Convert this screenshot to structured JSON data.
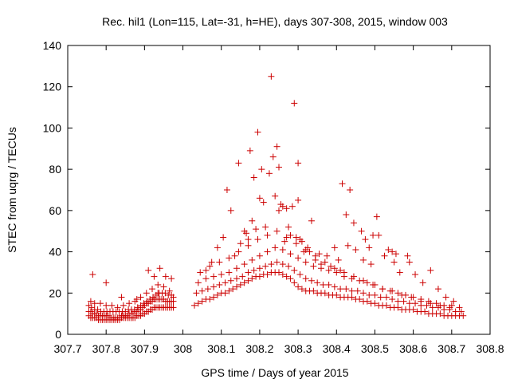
{
  "chart_data": {
    "type": "scatter",
    "title": "Rec. hil1 (Lon=115, Lat=-31, h=HE), days 307-308, 2015, window 003",
    "xlabel": "GPS time / Days of year 2015",
    "ylabel": "STEC from uqrg / TECUs",
    "xlim": [
      307.7,
      308.8
    ],
    "ylim": [
      0,
      140
    ],
    "xticks": [
      307.7,
      307.8,
      307.9,
      308.0,
      308.1,
      308.2,
      308.3,
      308.4,
      308.5,
      308.6,
      308.7,
      308.8
    ],
    "xtick_labels": [
      "307.7",
      "307.8",
      "307.9",
      "308",
      "308.1",
      "308.2",
      "308.3",
      "308.4",
      "308.5",
      "308.6",
      "308.7",
      "308.8"
    ],
    "yticks": [
      0,
      20,
      40,
      60,
      80,
      100,
      120,
      140
    ],
    "ytick_labels": [
      "0",
      "20",
      "40",
      "60",
      "80",
      "100",
      "120",
      "140"
    ],
    "grid": false,
    "marker": "+",
    "color": "#cc0000",
    "series": [
      {
        "name": "STEC",
        "x": [
          307.755,
          307.76,
          307.765,
          307.77,
          307.775,
          307.78,
          307.785,
          307.79,
          307.795,
          307.8,
          307.805,
          307.81,
          307.815,
          307.82,
          307.825,
          307.83,
          307.835,
          307.84,
          307.845,
          307.85,
          307.855,
          307.86,
          307.865,
          307.87,
          307.875,
          307.88,
          307.885,
          307.89,
          307.895,
          307.9,
          307.905,
          307.91,
          307.915,
          307.92,
          307.925,
          307.93,
          307.935,
          307.94,
          307.945,
          307.95,
          307.955,
          307.96,
          307.965,
          307.97,
          307.975,
          307.755,
          307.76,
          307.765,
          307.77,
          307.775,
          307.78,
          307.785,
          307.79,
          307.795,
          307.8,
          307.805,
          307.81,
          307.815,
          307.82,
          307.825,
          307.83,
          307.835,
          307.84,
          307.845,
          307.85,
          307.855,
          307.86,
          307.865,
          307.87,
          307.875,
          307.88,
          307.885,
          307.89,
          307.895,
          307.9,
          307.905,
          307.91,
          307.915,
          307.92,
          307.925,
          307.93,
          307.935,
          307.94,
          307.945,
          307.95,
          307.955,
          307.96,
          307.965,
          307.97,
          307.975,
          307.755,
          307.762,
          307.77,
          307.778,
          307.786,
          307.794,
          307.802,
          307.81,
          307.818,
          307.826,
          307.834,
          307.842,
          307.85,
          307.858,
          307.866,
          307.874,
          307.882,
          307.89,
          307.898,
          307.906,
          307.914,
          307.922,
          307.93,
          307.938,
          307.946,
          307.954,
          307.962,
          307.97,
          307.975,
          307.76,
          307.77,
          307.785,
          307.8,
          307.815,
          307.83,
          307.845,
          307.86,
          307.875,
          307.89,
          307.905,
          307.92,
          307.935,
          307.95,
          307.965,
          307.765,
          307.8,
          307.84,
          307.88,
          307.91,
          307.925,
          307.94,
          307.955,
          307.97,
          307.935,
          308.03,
          308.04,
          308.05,
          308.06,
          308.07,
          308.08,
          308.09,
          308.1,
          308.11,
          308.12,
          308.13,
          308.14,
          308.15,
          308.16,
          308.17,
          308.18,
          308.19,
          308.2,
          308.21,
          308.22,
          308.23,
          308.24,
          308.25,
          308.26,
          308.27,
          308.28,
          308.29,
          308.3,
          308.31,
          308.32,
          308.33,
          308.34,
          308.35,
          308.36,
          308.37,
          308.38,
          308.39,
          308.4,
          308.41,
          308.42,
          308.43,
          308.44,
          308.45,
          308.46,
          308.47,
          308.48,
          308.49,
          308.5,
          308.51,
          308.52,
          308.53,
          308.54,
          308.55,
          308.56,
          308.57,
          308.58,
          308.59,
          308.6,
          308.61,
          308.62,
          308.63,
          308.64,
          308.65,
          308.66,
          308.67,
          308.68,
          308.69,
          308.7,
          308.71,
          308.72,
          308.73,
          308.035,
          308.05,
          308.065,
          308.08,
          308.095,
          308.11,
          308.125,
          308.14,
          308.155,
          308.17,
          308.185,
          308.2,
          308.215,
          308.23,
          308.245,
          308.26,
          308.275,
          308.29,
          308.305,
          308.32,
          308.335,
          308.35,
          308.365,
          308.38,
          308.395,
          308.41,
          308.425,
          308.44,
          308.455,
          308.47,
          308.485,
          308.5,
          308.515,
          308.53,
          308.545,
          308.56,
          308.575,
          308.59,
          308.605,
          308.62,
          308.635,
          308.65,
          308.665,
          308.68,
          308.695,
          308.71,
          308.725,
          308.04,
          308.06,
          308.08,
          308.1,
          308.12,
          308.14,
          308.16,
          308.18,
          308.2,
          308.22,
          308.24,
          308.26,
          308.28,
          308.3,
          308.32,
          308.34,
          308.36,
          308.38,
          308.4,
          308.42,
          308.44,
          308.46,
          308.48,
          308.5,
          308.52,
          308.54,
          308.56,
          308.58,
          308.6,
          308.62,
          308.64,
          308.66,
          308.68,
          308.7,
          308.72,
          308.045,
          308.07,
          308.095,
          308.12,
          308.145,
          308.17,
          308.195,
          308.22,
          308.245,
          308.27,
          308.295,
          308.32,
          308.345,
          308.37,
          308.395,
          308.42,
          308.445,
          308.47,
          308.495,
          308.52,
          308.545,
          308.57,
          308.595,
          308.62,
          308.645,
          308.67,
          308.695,
          308.115,
          308.125,
          308.145,
          308.165,
          308.175,
          308.185,
          308.195,
          308.2,
          308.205,
          308.21,
          308.215,
          308.225,
          308.23,
          308.235,
          308.24,
          308.245,
          308.25,
          308.255,
          308.265,
          308.27,
          308.275,
          308.28,
          308.285,
          308.29,
          308.295,
          308.3,
          308.305,
          308.31,
          308.315,
          308.325,
          308.335,
          308.355,
          308.375,
          308.395,
          308.405,
          308.415,
          308.425,
          308.435,
          308.445,
          308.465,
          308.475,
          308.485,
          308.495,
          308.505,
          308.535,
          308.545,
          308.555,
          308.585,
          308.605,
          308.06,
          308.075,
          308.09,
          308.105,
          308.135,
          308.15,
          308.16,
          308.17,
          308.18,
          308.19,
          308.25,
          308.26,
          308.3,
          308.33,
          308.345,
          308.36,
          308.385,
          308.41,
          308.43,
          308.45,
          308.47,
          308.49,
          308.51,
          308.525,
          308.55,
          308.565,
          308.59,
          308.625,
          308.645,
          308.665,
          308.685,
          308.705
        ],
        "y": [
          9,
          8,
          8,
          8,
          8,
          7,
          7,
          7,
          7,
          7,
          7,
          7,
          7,
          7,
          7,
          7,
          7,
          8,
          8,
          8,
          8,
          8,
          8,
          8,
          8,
          9,
          9,
          9,
          10,
          10,
          11,
          11,
          12,
          12,
          13,
          13,
          13,
          13,
          13,
          13,
          13,
          13,
          13,
          13,
          13,
          11,
          11,
          10,
          10,
          10,
          9,
          9,
          9,
          9,
          9,
          9,
          8,
          8,
          8,
          8,
          8,
          8,
          9,
          9,
          9,
          9,
          10,
          10,
          10,
          11,
          11,
          12,
          12,
          13,
          14,
          15,
          15,
          16,
          16,
          17,
          17,
          17,
          17,
          17,
          17,
          16,
          16,
          16,
          16,
          16,
          14,
          13,
          12,
          12,
          11,
          11,
          11,
          11,
          11,
          11,
          11,
          11,
          11,
          12,
          12,
          12,
          13,
          14,
          15,
          16,
          17,
          18,
          19,
          20,
          20,
          20,
          19,
          19,
          18,
          16,
          15,
          15,
          14,
          14,
          13,
          14,
          15,
          16,
          18,
          20,
          22,
          24,
          23,
          21,
          29,
          25,
          18,
          17,
          31,
          28,
          32,
          28,
          27,
          20,
          14,
          15,
          16,
          17,
          17,
          18,
          19,
          20,
          20,
          21,
          22,
          23,
          24,
          25,
          26,
          27,
          28,
          28,
          29,
          29,
          30,
          30,
          30,
          29,
          28,
          27,
          25,
          23,
          22,
          21,
          21,
          21,
          20,
          20,
          20,
          19,
          19,
          19,
          18,
          18,
          18,
          18,
          17,
          17,
          16,
          16,
          15,
          15,
          14,
          14,
          14,
          13,
          13,
          13,
          12,
          12,
          12,
          12,
          11,
          11,
          11,
          10,
          10,
          10,
          10,
          9,
          9,
          9,
          9,
          9,
          9,
          20,
          21,
          22,
          23,
          24,
          25,
          26,
          27,
          28,
          30,
          31,
          32,
          33,
          34,
          35,
          34,
          33,
          31,
          29,
          27,
          26,
          25,
          24,
          24,
          23,
          22,
          22,
          21,
          21,
          20,
          19,
          19,
          18,
          18,
          17,
          16,
          16,
          15,
          15,
          14,
          14,
          13,
          13,
          12,
          12,
          11,
          11,
          25,
          27,
          28,
          29,
          30,
          32,
          34,
          36,
          38,
          40,
          42,
          41,
          39,
          37,
          35,
          33,
          32,
          31,
          30,
          28,
          27,
          26,
          25,
          24,
          22,
          21,
          20,
          19,
          18,
          17,
          16,
          15,
          14,
          14,
          13,
          30,
          33,
          35,
          37,
          40,
          43,
          46,
          48,
          50,
          47,
          44,
          41,
          38,
          35,
          32,
          30,
          28,
          26,
          24,
          22,
          21,
          19,
          18,
          16,
          15,
          14,
          13,
          70,
          60,
          83,
          49,
          89,
          76,
          98,
          66,
          80,
          64,
          52,
          78,
          125,
          86,
          67,
          91,
          81,
          63,
          45,
          61,
          52,
          48,
          62,
          112,
          47,
          83,
          46,
          45,
          40,
          42,
          55,
          39,
          38,
          42,
          36,
          73,
          58,
          70,
          54,
          50,
          46,
          42,
          48,
          57,
          41,
          40,
          39,
          38,
          29,
          31,
          35,
          42,
          47,
          38,
          44,
          50,
          46,
          55,
          51,
          60,
          62,
          65,
          40,
          36,
          34,
          33,
          31,
          43,
          41,
          36,
          34,
          48,
          38,
          35,
          30,
          35,
          25,
          31,
          22,
          18,
          16
        ]
      }
    ]
  }
}
